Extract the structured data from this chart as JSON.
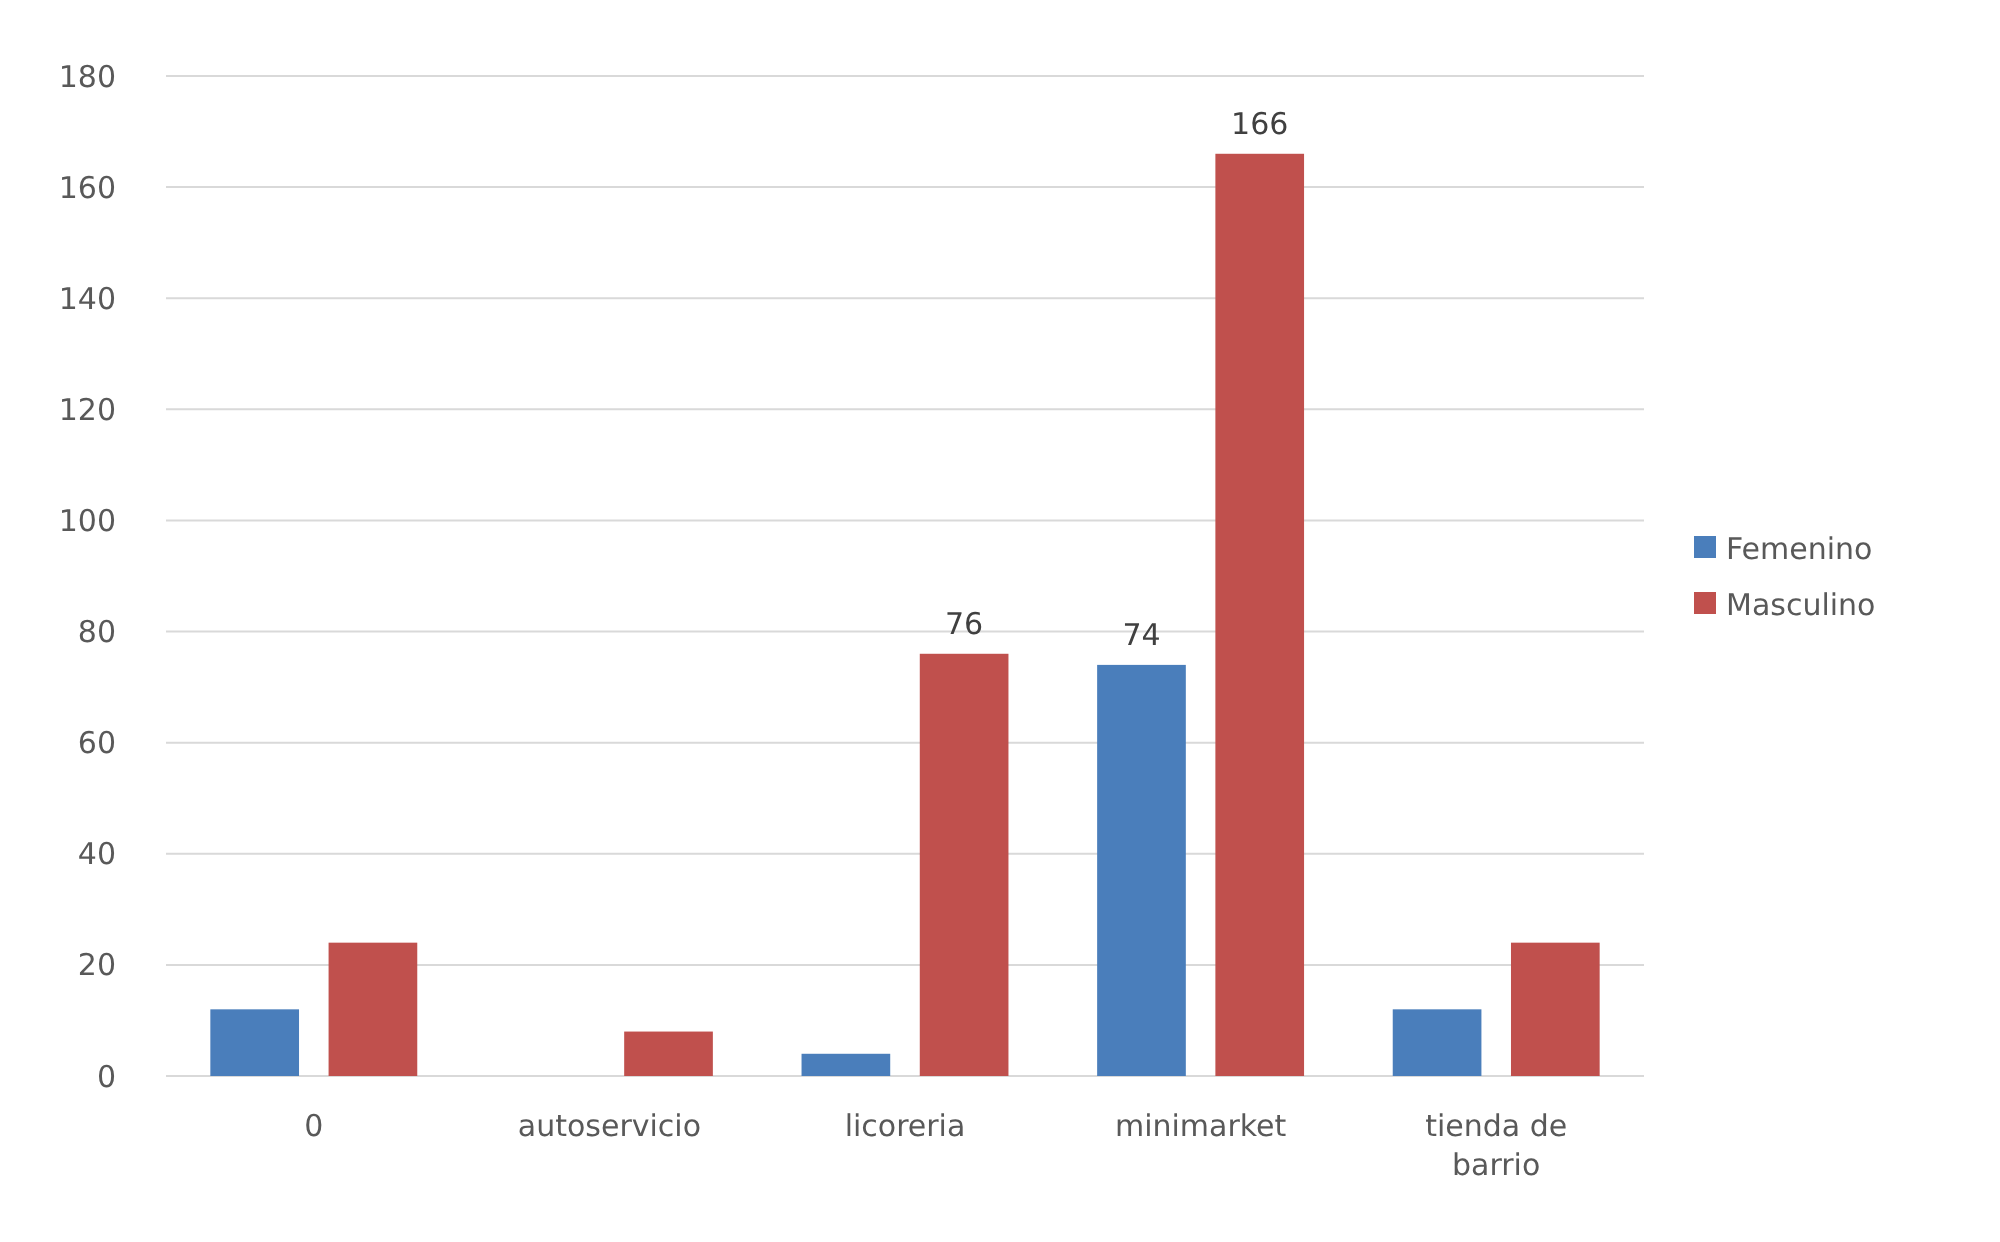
{
  "chart_data": {
    "type": "bar",
    "categories": [
      "0",
      "autoservicio",
      "licoreria",
      "minimarket",
      "tienda de barrio"
    ],
    "series": [
      {
        "name": "Femenino",
        "color": "#4a7ebb",
        "values": [
          12,
          null,
          4,
          74,
          12
        ],
        "value_labels": [
          null,
          null,
          null,
          "74",
          null
        ]
      },
      {
        "name": "Masculino",
        "color": "#c0504d",
        "values": [
          24,
          8,
          76,
          166,
          24
        ],
        "value_labels": [
          null,
          null,
          "76",
          "166",
          null
        ]
      }
    ],
    "ylim": [
      0,
      180
    ],
    "yticks": [
      0,
      20,
      40,
      60,
      80,
      100,
      120,
      140,
      160,
      180
    ],
    "grid": "y",
    "legend": "right"
  }
}
